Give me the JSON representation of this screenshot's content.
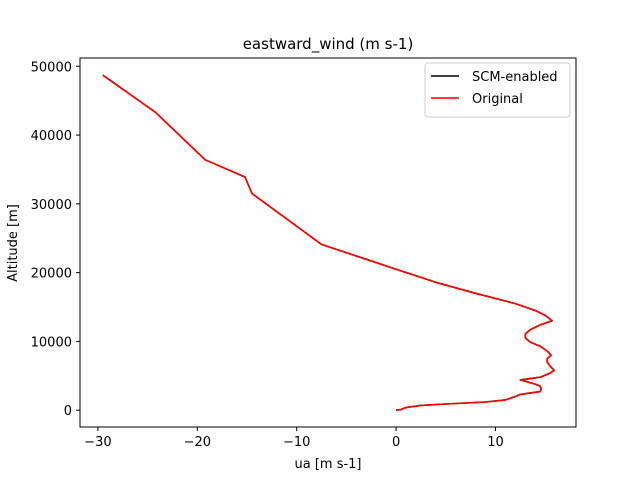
{
  "chart_data": {
    "type": "line",
    "title": "eastward_wind (m s-1)",
    "xlabel": "ua [m s-1]",
    "ylabel": "Altitude [m]",
    "xlim": [
      -31.8,
      18.1
    ],
    "ylim": [
      -2440,
      51200
    ],
    "xticks": [
      -30,
      -20,
      -10,
      0,
      10
    ],
    "xtick_labels": [
      "−30",
      "−20",
      "−10",
      "0",
      "10"
    ],
    "yticks": [
      0,
      10000,
      20000,
      30000,
      40000,
      50000
    ],
    "ytick_labels": [
      "0",
      "10000",
      "20000",
      "30000",
      "40000",
      "50000"
    ],
    "grid": false,
    "legend_position": "top-right",
    "series": [
      {
        "name": "SCM-enabled",
        "color": "#000000",
        "points": [
          [
            0.0,
            0
          ],
          [
            0.5,
            100
          ],
          [
            1.0,
            400
          ],
          [
            2.5,
            700
          ],
          [
            5.0,
            900
          ],
          [
            9.0,
            1200
          ],
          [
            11.0,
            1500
          ],
          [
            12.0,
            2000
          ],
          [
            12.5,
            2300
          ],
          [
            14.5,
            2700
          ],
          [
            14.6,
            3100
          ],
          [
            14.5,
            3500
          ],
          [
            14.0,
            3800
          ],
          [
            12.5,
            4400
          ],
          [
            14.5,
            4800
          ],
          [
            15.5,
            5400
          ],
          [
            15.9,
            5800
          ],
          [
            15.5,
            6400
          ],
          [
            15.2,
            7000
          ],
          [
            15.2,
            7500
          ],
          [
            15.6,
            8000
          ],
          [
            15.2,
            8600
          ],
          [
            14.5,
            9300
          ],
          [
            13.5,
            9900
          ],
          [
            13.0,
            10500
          ],
          [
            13.0,
            11100
          ],
          [
            13.5,
            11700
          ],
          [
            14.5,
            12400
          ],
          [
            15.7,
            13000
          ],
          [
            15.0,
            13800
          ],
          [
            14.0,
            14500
          ],
          [
            12.0,
            15500
          ],
          [
            8.0,
            17000
          ],
          [
            4.0,
            18600
          ],
          [
            0.0,
            20500
          ],
          [
            -7.5,
            24100
          ],
          [
            -14.5,
            31500
          ],
          [
            -15.2,
            33900
          ],
          [
            -19.2,
            36400
          ],
          [
            -24.2,
            43300
          ],
          [
            -29.5,
            48700
          ]
        ]
      },
      {
        "name": "Original",
        "color": "#ff0000",
        "points": [
          [
            0.0,
            0
          ],
          [
            0.5,
            100
          ],
          [
            1.0,
            400
          ],
          [
            2.5,
            700
          ],
          [
            5.0,
            900
          ],
          [
            9.0,
            1200
          ],
          [
            11.0,
            1500
          ],
          [
            12.0,
            2000
          ],
          [
            12.5,
            2300
          ],
          [
            14.5,
            2700
          ],
          [
            14.6,
            3100
          ],
          [
            14.5,
            3500
          ],
          [
            14.0,
            3800
          ],
          [
            12.5,
            4400
          ],
          [
            14.5,
            4800
          ],
          [
            15.5,
            5400
          ],
          [
            15.9,
            5800
          ],
          [
            15.5,
            6400
          ],
          [
            15.2,
            7000
          ],
          [
            15.2,
            7500
          ],
          [
            15.6,
            8000
          ],
          [
            15.2,
            8600
          ],
          [
            14.5,
            9300
          ],
          [
            13.5,
            9900
          ],
          [
            13.0,
            10500
          ],
          [
            13.0,
            11100
          ],
          [
            13.5,
            11700
          ],
          [
            14.5,
            12400
          ],
          [
            15.7,
            13000
          ],
          [
            15.0,
            13800
          ],
          [
            14.0,
            14500
          ],
          [
            12.0,
            15500
          ],
          [
            8.0,
            17000
          ],
          [
            4.0,
            18600
          ],
          [
            0.0,
            20500
          ],
          [
            -7.5,
            24100
          ],
          [
            -14.5,
            31500
          ],
          [
            -15.2,
            33900
          ],
          [
            -19.2,
            36400
          ],
          [
            -24.2,
            43300
          ],
          [
            -29.5,
            48700
          ]
        ]
      }
    ]
  }
}
